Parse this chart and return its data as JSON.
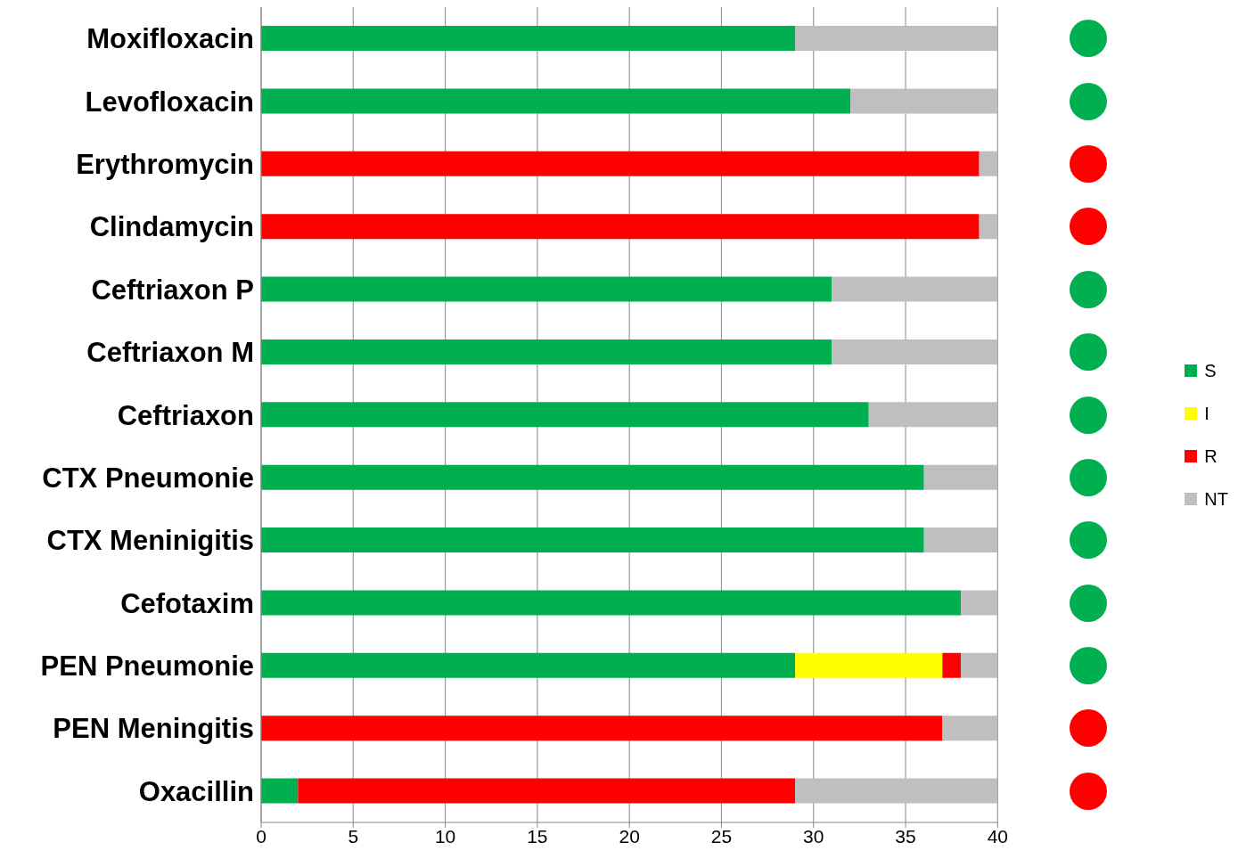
{
  "chart_data": {
    "type": "bar",
    "orientation": "horizontal",
    "stacked": true,
    "categories": [
      "Moxifloxacin",
      "Levofloxacin",
      "Erythromycin",
      "Clindamycin",
      "Ceftriaxon P",
      "Ceftriaxon M",
      "Ceftriaxon",
      "CTX Pneumonie",
      "CTX Meninigitis",
      "Cefotaxim",
      "PEN Pneumonie",
      "PEN Meningitis",
      "Oxacillin"
    ],
    "series": [
      {
        "name": "S",
        "color": "#00b050",
        "values": [
          29,
          32,
          0,
          0,
          31,
          31,
          33,
          36,
          36,
          38,
          29,
          0,
          2
        ]
      },
      {
        "name": "I",
        "color": "#ffff00",
        "values": [
          0,
          0,
          0,
          0,
          0,
          0,
          0,
          0,
          0,
          0,
          8,
          0,
          0
        ]
      },
      {
        "name": "R",
        "color": "#ff0000",
        "values": [
          0,
          0,
          39,
          39,
          0,
          0,
          0,
          0,
          0,
          0,
          1,
          37,
          27
        ]
      },
      {
        "name": "NT",
        "color": "#bfbfbf",
        "values": [
          11,
          8,
          1,
          1,
          9,
          9,
          7,
          4,
          4,
          2,
          2,
          3,
          11
        ]
      }
    ],
    "xlim": [
      0,
      40
    ],
    "xticks": [
      0,
      5,
      10,
      15,
      20,
      25,
      30,
      35,
      40
    ],
    "grid": "x",
    "legend": "right"
  }
}
